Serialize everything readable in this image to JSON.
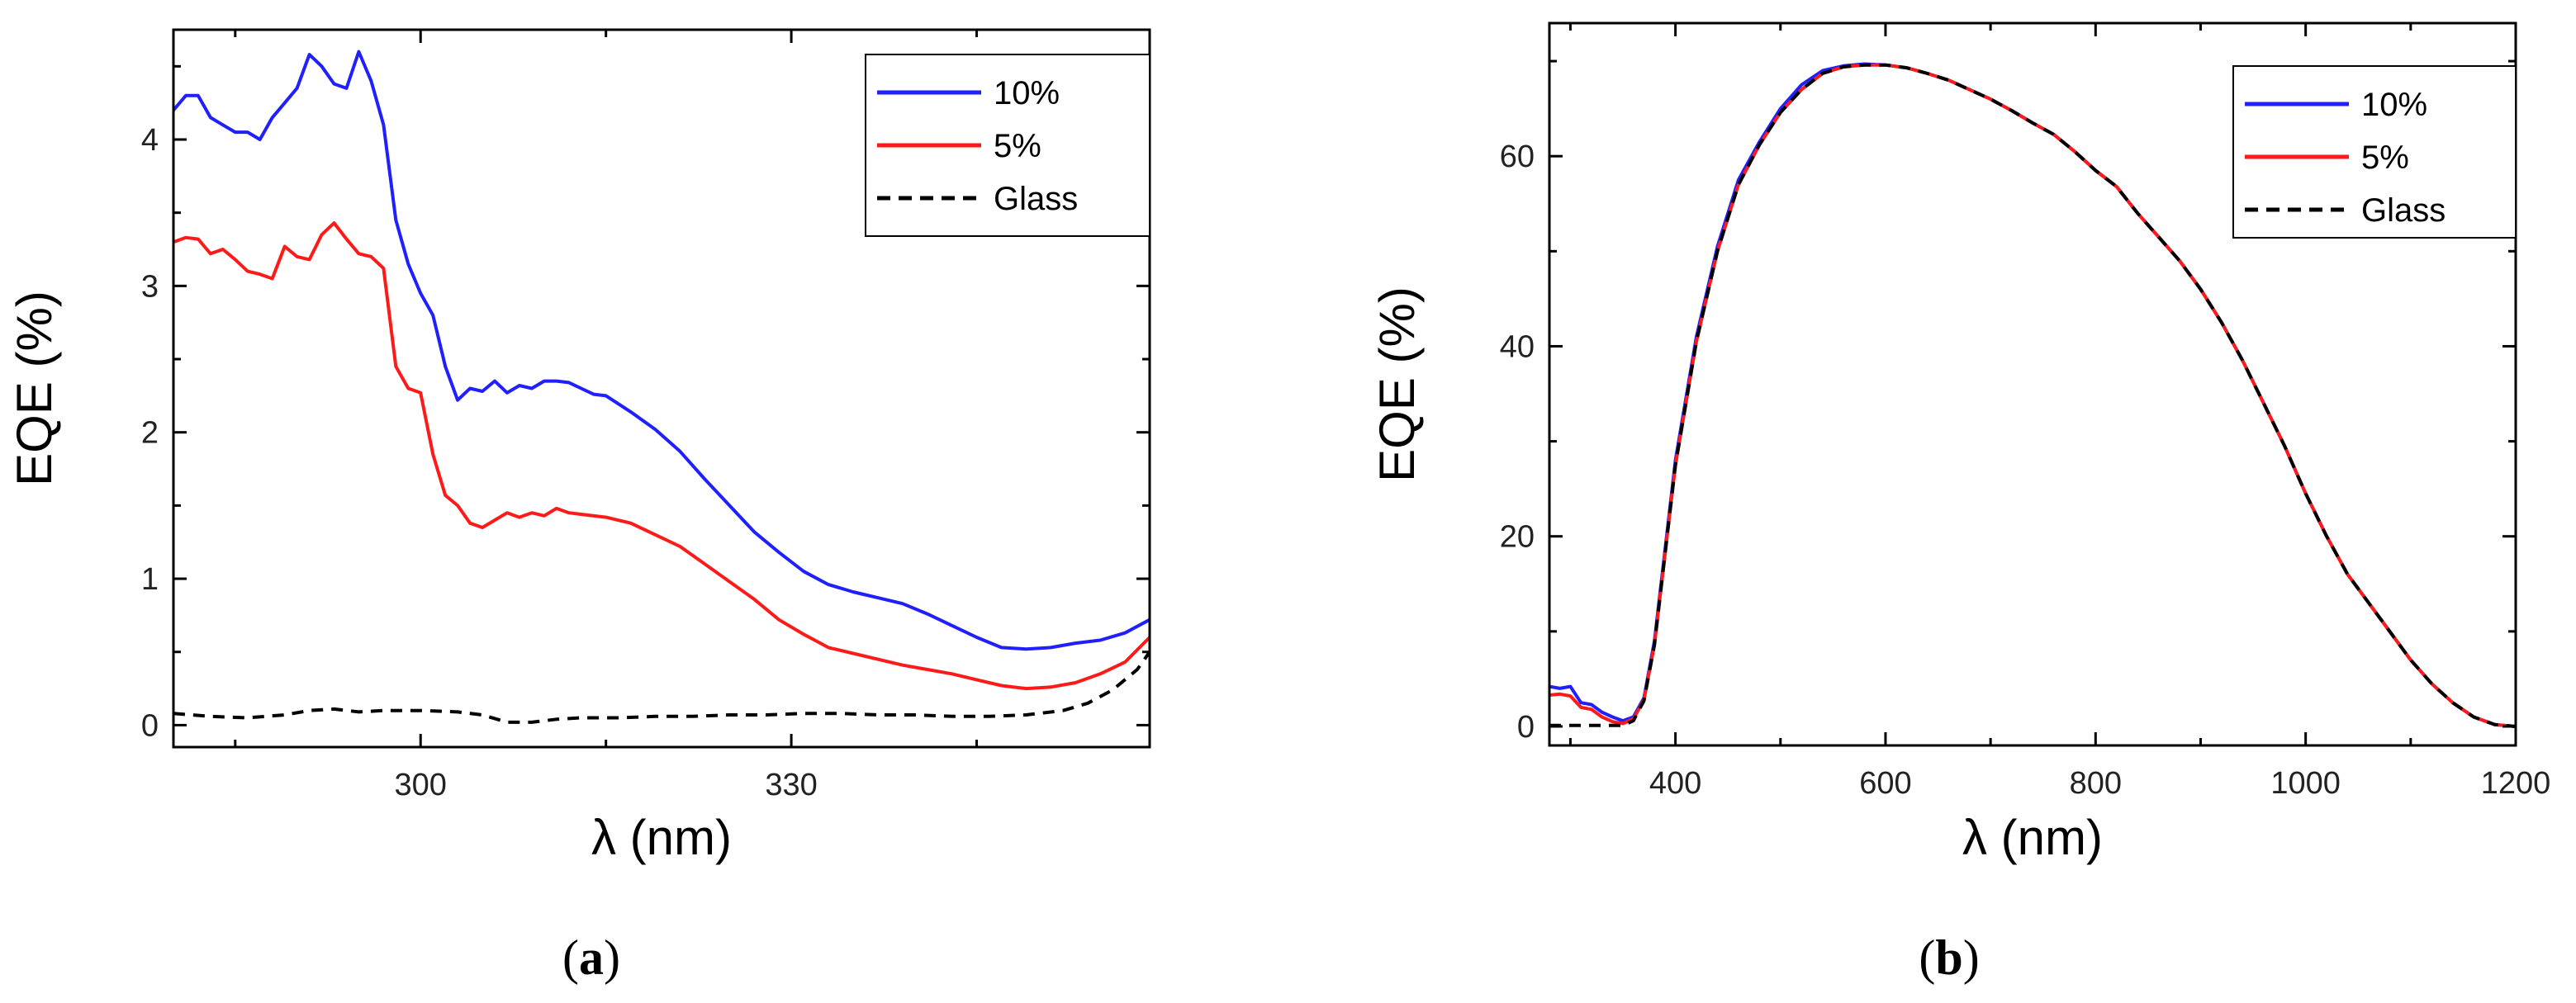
{
  "colors": {
    "series_10": "#1f1fff",
    "series_5": "#ff1a1a",
    "series_glass": "#000000",
    "axis": "#000000"
  },
  "chart_data": [
    {
      "type": "line",
      "panel": "a",
      "xlabel": "λ (nm)",
      "ylabel": "EQE (%)",
      "xlim": [
        280,
        359
      ],
      "ylim": [
        -0.15,
        4.75
      ],
      "xticks": [
        300,
        330
      ],
      "xticks_labeled": [
        300,
        330
      ],
      "xticks_minor": [
        285,
        315,
        345
      ],
      "yticks": [
        0,
        1,
        2,
        3,
        4
      ],
      "yticks_minor": [
        0.5,
        1.5,
        2.5,
        3.5,
        4.5
      ],
      "legend": {
        "position": "top-right",
        "entries": [
          "10%",
          "5%",
          "Glass"
        ]
      },
      "series": [
        {
          "name": "10%",
          "style": "solid",
          "x": [
            280,
            281,
            282,
            283,
            284,
            285,
            286,
            287,
            288,
            289,
            290,
            291,
            292,
            293,
            294,
            295,
            296,
            297,
            298,
            299,
            300,
            301,
            302,
            303,
            304,
            305,
            306,
            307,
            308,
            309,
            310,
            311,
            312,
            313,
            314,
            315,
            317,
            319,
            321,
            323,
            325,
            327,
            329,
            331,
            333,
            335,
            337,
            339,
            341,
            343,
            345,
            347,
            349,
            351,
            353,
            355,
            357,
            359
          ],
          "values": [
            4.2,
            4.3,
            4.3,
            4.15,
            4.1,
            4.05,
            4.05,
            4.0,
            4.15,
            4.25,
            4.35,
            4.58,
            4.5,
            4.38,
            4.35,
            4.6,
            4.4,
            4.1,
            3.45,
            3.15,
            2.95,
            2.8,
            2.45,
            2.22,
            2.3,
            2.28,
            2.35,
            2.27,
            2.32,
            2.3,
            2.35,
            2.35,
            2.34,
            2.3,
            2.26,
            2.25,
            2.14,
            2.02,
            1.87,
            1.68,
            1.5,
            1.32,
            1.18,
            1.05,
            0.96,
            0.91,
            0.87,
            0.83,
            0.76,
            0.68,
            0.6,
            0.53,
            0.52,
            0.53,
            0.56,
            0.58,
            0.63,
            0.72
          ]
        },
        {
          "name": "5%",
          "style": "solid",
          "x": [
            280,
            281,
            282,
            283,
            284,
            285,
            286,
            287,
            288,
            289,
            290,
            291,
            292,
            293,
            294,
            295,
            296,
            297,
            298,
            299,
            300,
            301,
            302,
            303,
            304,
            305,
            306,
            307,
            308,
            309,
            310,
            311,
            312,
            313,
            315,
            317,
            319,
            321,
            323,
            325,
            327,
            329,
            331,
            333,
            335,
            337,
            339,
            341,
            343,
            345,
            347,
            349,
            351,
            353,
            355,
            357,
            359
          ],
          "values": [
            3.3,
            3.33,
            3.32,
            3.22,
            3.25,
            3.18,
            3.1,
            3.08,
            3.05,
            3.27,
            3.2,
            3.18,
            3.35,
            3.43,
            3.32,
            3.22,
            3.2,
            3.12,
            2.45,
            2.3,
            2.27,
            1.85,
            1.57,
            1.5,
            1.38,
            1.35,
            1.4,
            1.45,
            1.42,
            1.45,
            1.43,
            1.48,
            1.45,
            1.44,
            1.42,
            1.38,
            1.3,
            1.22,
            1.1,
            0.98,
            0.86,
            0.72,
            0.62,
            0.53,
            0.49,
            0.45,
            0.41,
            0.38,
            0.35,
            0.31,
            0.27,
            0.25,
            0.26,
            0.29,
            0.35,
            0.43,
            0.6
          ]
        },
        {
          "name": "Glass",
          "style": "dashed",
          "x": [
            280,
            283,
            286,
            289,
            291,
            293,
            295,
            297,
            300,
            303,
            305,
            307,
            309,
            311,
            313,
            316,
            319,
            322,
            325,
            328,
            331,
            334,
            337,
            340,
            343,
            346,
            349,
            352,
            354,
            356,
            358,
            359
          ],
          "values": [
            0.08,
            0.06,
            0.05,
            0.07,
            0.1,
            0.11,
            0.09,
            0.1,
            0.1,
            0.09,
            0.07,
            0.02,
            0.02,
            0.04,
            0.05,
            0.05,
            0.06,
            0.06,
            0.07,
            0.07,
            0.08,
            0.08,
            0.07,
            0.07,
            0.06,
            0.06,
            0.07,
            0.1,
            0.15,
            0.24,
            0.38,
            0.5
          ]
        }
      ]
    },
    {
      "type": "line",
      "panel": "b",
      "xlabel": "λ (nm)",
      "ylabel": "EQE (%)",
      "xlim": [
        280,
        1200
      ],
      "ylim": [
        -2,
        74
      ],
      "xticks": [
        400,
        600,
        800,
        1000,
        1200
      ],
      "xticks_labeled": [
        400,
        600,
        800,
        1000,
        1200
      ],
      "xticks_minor": [
        300,
        500,
        700,
        900,
        1100
      ],
      "yticks": [
        0,
        20,
        40,
        60
      ],
      "yticks_minor": [
        10,
        30,
        50,
        70
      ],
      "legend": {
        "position": "top-right",
        "entries": [
          "10%",
          "5%",
          "Glass"
        ]
      },
      "series": [
        {
          "name": "10%",
          "style": "solid",
          "x": [
            280,
            290,
            300,
            310,
            320,
            330,
            340,
            350,
            360,
            370,
            380,
            400,
            420,
            440,
            460,
            480,
            500,
            520,
            540,
            560,
            580,
            600,
            620,
            640,
            660,
            680,
            700,
            720,
            740,
            760,
            780,
            800,
            820,
            840,
            860,
            880,
            900,
            920,
            940,
            960,
            980,
            1000,
            1020,
            1040,
            1060,
            1080,
            1100,
            1120,
            1140,
            1160,
            1180,
            1200
          ],
          "values": [
            4.2,
            4.0,
            4.2,
            2.5,
            2.3,
            1.5,
            1.0,
            0.6,
            1.0,
            3.0,
            9.0,
            28.0,
            41.0,
            50.5,
            57.5,
            61.5,
            65.0,
            67.5,
            69.0,
            69.5,
            69.7,
            69.6,
            69.3,
            68.7,
            68.0,
            67.0,
            66.0,
            64.8,
            63.5,
            62.3,
            60.5,
            58.5,
            56.8,
            54.0,
            51.5,
            49.0,
            46.0,
            42.5,
            38.5,
            34.0,
            29.5,
            24.5,
            20.0,
            16.0,
            13.0,
            10.0,
            7.0,
            4.5,
            2.5,
            1.0,
            0.2,
            0.0
          ]
        },
        {
          "name": "5%",
          "style": "solid",
          "x": [
            280,
            290,
            300,
            310,
            320,
            330,
            340,
            350,
            360,
            370,
            380,
            400,
            420,
            440,
            460,
            480,
            500,
            520,
            540,
            560,
            580,
            600,
            620,
            640,
            660,
            680,
            700,
            720,
            740,
            760,
            780,
            800,
            820,
            840,
            860,
            880,
            900,
            920,
            940,
            960,
            980,
            1000,
            1020,
            1040,
            1060,
            1080,
            1100,
            1120,
            1140,
            1160,
            1180,
            1200
          ],
          "values": [
            3.3,
            3.4,
            3.2,
            2.0,
            1.8,
            1.0,
            0.5,
            0.3,
            0.8,
            2.8,
            8.6,
            27.5,
            40.5,
            50.0,
            57.0,
            61.2,
            64.6,
            67.0,
            68.7,
            69.4,
            69.6,
            69.6,
            69.3,
            68.7,
            68.0,
            67.0,
            66.0,
            64.8,
            63.5,
            62.3,
            60.5,
            58.5,
            56.8,
            54.0,
            51.5,
            49.0,
            46.0,
            42.5,
            38.5,
            34.0,
            29.5,
            24.5,
            20.0,
            16.0,
            13.0,
            10.0,
            7.0,
            4.5,
            2.5,
            1.0,
            0.2,
            0.0
          ]
        },
        {
          "name": "Glass",
          "style": "dashed",
          "x": [
            280,
            290,
            300,
            310,
            320,
            330,
            340,
            350,
            360,
            370,
            380,
            400,
            420,
            440,
            460,
            480,
            500,
            520,
            540,
            560,
            580,
            600,
            620,
            640,
            660,
            680,
            700,
            720,
            740,
            760,
            780,
            800,
            820,
            840,
            860,
            880,
            900,
            920,
            940,
            960,
            980,
            1000,
            1020,
            1040,
            1060,
            1080,
            1100,
            1120,
            1140,
            1160,
            1180,
            1200
          ],
          "values": [
            0.1,
            0.1,
            0.1,
            0.1,
            0.1,
            0.1,
            0.1,
            0.1,
            0.6,
            2.7,
            8.6,
            27.5,
            40.5,
            50.0,
            57.0,
            61.2,
            64.6,
            67.0,
            68.7,
            69.4,
            69.6,
            69.6,
            69.3,
            68.7,
            68.0,
            67.0,
            66.0,
            64.8,
            63.5,
            62.3,
            60.5,
            58.5,
            56.8,
            54.0,
            51.5,
            49.0,
            46.0,
            42.5,
            38.5,
            34.0,
            29.5,
            24.5,
            20.0,
            16.0,
            13.0,
            10.0,
            7.0,
            4.5,
            2.5,
            1.0,
            0.2,
            0.0
          ]
        }
      ]
    }
  ],
  "captions": [
    {
      "open": "(",
      "letter": "a",
      "close": ")"
    },
    {
      "open": "(",
      "letter": "b",
      "close": ")"
    }
  ]
}
